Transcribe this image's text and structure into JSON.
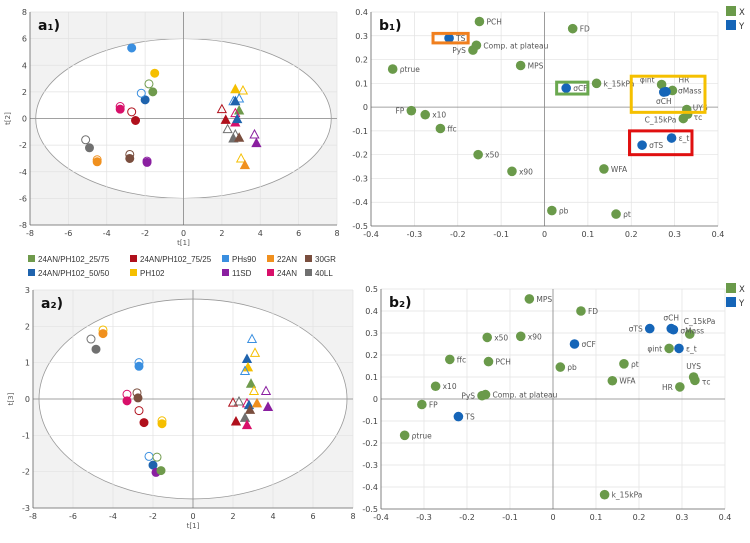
{
  "groups": [
    {
      "name": "24AN/PH102_25/75",
      "color": "#6f9a4c"
    },
    {
      "name": "24AN/PH102_50/50",
      "color": "#1f63ad"
    },
    {
      "name": "24AN/PH102_75/25",
      "color": "#b0101c"
    },
    {
      "name": "PH102",
      "color": "#f5bf00"
    },
    {
      "name": "PHs90",
      "color": "#3a8fe0"
    },
    {
      "name": "11SD",
      "color": "#8a1fa0"
    },
    {
      "name": "22AN",
      "color": "#f0901e"
    },
    {
      "name": "24AN",
      "color": "#d8106a"
    },
    {
      "name": "30GR",
      "color": "#7a4e3e"
    },
    {
      "name": "40LL",
      "color": "#707070"
    }
  ],
  "chart_data": [
    {
      "id": "a1",
      "title": "a₁)",
      "type": "scatter",
      "xlabel": "t[1]",
      "ylabel": "t[2]",
      "xlim": [
        -8,
        8
      ],
      "ylim": [
        -8,
        8
      ],
      "xticks": [
        -8,
        -6,
        -4,
        -2,
        0,
        2,
        4,
        6,
        8
      ],
      "yticks": [
        -8,
        -6,
        -4,
        -2,
        0,
        2,
        4,
        6,
        8
      ],
      "ellipse": [
        7.7,
        6
      ],
      "points": [
        [
          4,
          "c",
          1,
          -2.7,
          5.3
        ],
        [
          3,
          "c",
          1,
          -1.5,
          3.4
        ],
        [
          0,
          "c",
          1,
          -1.6,
          2.0
        ],
        [
          1,
          "c",
          1,
          -2.0,
          1.4
        ],
        [
          4,
          "c",
          0,
          -2.2,
          1.9
        ],
        [
          0,
          "c",
          0,
          -1.8,
          2.6
        ],
        [
          7,
          "c",
          0,
          -3.3,
          0.9
        ],
        [
          7,
          "c",
          1,
          -3.3,
          0.7
        ],
        [
          2,
          "c",
          0,
          -2.7,
          0.5
        ],
        [
          2,
          "c",
          1,
          -2.5,
          -0.15
        ],
        [
          9,
          "c",
          0,
          -5.1,
          -1.6
        ],
        [
          9,
          "c",
          1,
          -4.9,
          -2.2
        ],
        [
          6,
          "c",
          0,
          -4.5,
          -3.1
        ],
        [
          6,
          "c",
          1,
          -4.5,
          -3.25
        ],
        [
          8,
          "c",
          0,
          -2.8,
          -2.7
        ],
        [
          8,
          "c",
          1,
          -2.8,
          -3.0
        ],
        [
          5,
          "c",
          0,
          -1.9,
          -3.2
        ],
        [
          5,
          "c",
          1,
          -1.9,
          -3.3
        ],
        [
          3,
          "t",
          1,
          2.7,
          2.2
        ],
        [
          3,
          "t",
          0,
          3.1,
          2.1
        ],
        [
          4,
          "t",
          0,
          2.9,
          1.5
        ],
        [
          4,
          "t",
          0,
          2.6,
          1.3
        ],
        [
          1,
          "t",
          1,
          2.7,
          1.3
        ],
        [
          0,
          "t",
          1,
          2.9,
          0.6
        ],
        [
          2,
          "t",
          0,
          2.0,
          0.7
        ],
        [
          2,
          "t",
          1,
          2.2,
          -0.1
        ],
        [
          7,
          "t",
          0,
          2.7,
          0.4
        ],
        [
          7,
          "t",
          1,
          2.7,
          -0.3
        ],
        [
          1,
          "t",
          1,
          2.8,
          -0.05
        ],
        [
          9,
          "t",
          0,
          2.3,
          -0.8
        ],
        [
          9,
          "t",
          0,
          2.7,
          -1.2
        ],
        [
          9,
          "t",
          1,
          2.6,
          -1.5
        ],
        [
          8,
          "t",
          1,
          2.9,
          -1.45
        ],
        [
          5,
          "t",
          0,
          3.7,
          -1.2
        ],
        [
          5,
          "t",
          1,
          3.8,
          -1.85
        ],
        [
          3,
          "t",
          0,
          3.0,
          -3.0
        ],
        [
          6,
          "t",
          1,
          3.2,
          -3.5
        ]
      ]
    },
    {
      "id": "a2",
      "title": "a₂)",
      "type": "scatter",
      "xlabel": "t[1]",
      "ylabel": "t[3]",
      "xlim": [
        -8,
        8
      ],
      "ylim": [
        -3,
        3
      ],
      "xticks": [
        -8,
        -6,
        -4,
        -2,
        0,
        2,
        4,
        6,
        8
      ],
      "yticks": [
        -3,
        -2,
        -1,
        0,
        1,
        2,
        3
      ],
      "ellipse": [
        7.7,
        2.75
      ],
      "points": [
        [
          3,
          "c",
          0,
          -4.5,
          1.9
        ],
        [
          6,
          "c",
          1,
          -4.5,
          1.8
        ],
        [
          9,
          "c",
          0,
          -5.1,
          1.65
        ],
        [
          9,
          "c",
          1,
          -4.85,
          1.37
        ],
        [
          4,
          "c",
          0,
          -2.7,
          1.0
        ],
        [
          4,
          "c",
          1,
          -2.7,
          0.9
        ],
        [
          7,
          "c",
          0,
          -3.3,
          0.13
        ],
        [
          7,
          "c",
          1,
          -3.3,
          -0.05
        ],
        [
          8,
          "c",
          0,
          -2.8,
          0.17
        ],
        [
          8,
          "c",
          1,
          -2.75,
          0.03
        ],
        [
          2,
          "c",
          0,
          -2.7,
          -0.32
        ],
        [
          2,
          "c",
          1,
          -2.45,
          -0.65
        ],
        [
          3,
          "c",
          0,
          -1.55,
          -0.6
        ],
        [
          3,
          "c",
          1,
          -1.55,
          -0.68
        ],
        [
          4,
          "c",
          0,
          -2.2,
          -1.58
        ],
        [
          0,
          "c",
          0,
          -1.8,
          -1.6
        ],
        [
          1,
          "c",
          1,
          -2.0,
          -1.82
        ],
        [
          5,
          "c",
          1,
          -1.85,
          -2.02
        ],
        [
          0,
          "c",
          1,
          -1.6,
          -1.97
        ],
        [
          4,
          "t",
          0,
          2.95,
          1.65
        ],
        [
          3,
          "t",
          0,
          3.1,
          1.27
        ],
        [
          1,
          "t",
          1,
          2.7,
          1.1
        ],
        [
          3,
          "t",
          1,
          2.75,
          0.87
        ],
        [
          4,
          "t",
          0,
          2.6,
          0.77
        ],
        [
          0,
          "t",
          1,
          2.9,
          0.42
        ],
        [
          3,
          "t",
          0,
          3.05,
          0.22
        ],
        [
          5,
          "t",
          0,
          3.65,
          0.22
        ],
        [
          2,
          "t",
          0,
          2.0,
          -0.1
        ],
        [
          9,
          "t",
          0,
          2.3,
          -0.07
        ],
        [
          7,
          "t",
          0,
          2.7,
          -0.12
        ],
        [
          1,
          "t",
          1,
          2.8,
          -0.17
        ],
        [
          6,
          "t",
          1,
          3.2,
          -0.12
        ],
        [
          5,
          "t",
          1,
          3.75,
          -0.22
        ],
        [
          8,
          "t",
          1,
          2.85,
          -0.3
        ],
        [
          9,
          "t",
          1,
          2.6,
          -0.52
        ],
        [
          2,
          "t",
          1,
          2.15,
          -0.62
        ],
        [
          7,
          "t",
          1,
          2.7,
          -0.72
        ]
      ]
    },
    {
      "id": "b1",
      "title": "b₁)",
      "type": "scatter",
      "xlim": [
        -0.4,
        0.4
      ],
      "ylim": [
        -0.5,
        0.4
      ],
      "xticks": [
        -0.4,
        -0.3,
        -0.2,
        -0.1,
        0,
        0.1,
        0.2,
        0.3,
        0.4
      ],
      "yticks": [
        -0.5,
        -0.4,
        -0.3,
        -0.2,
        -0.1,
        0,
        0.1,
        0.2,
        0.3,
        0.4
      ],
      "legend": [
        {
          "name": "X",
          "color": "#6a9a4a"
        },
        {
          "name": "Y",
          "color": "#1565b8"
        }
      ],
      "points": [
        [
          "PCH",
          "X",
          -0.15,
          0.36
        ],
        [
          "FD",
          "X",
          0.065,
          0.33
        ],
        [
          "TS",
          "Y",
          -0.22,
          0.29
        ],
        [
          "Comp. at plateau",
          "X",
          -0.157,
          0.26
        ],
        [
          "PyS",
          "X",
          -0.165,
          0.24
        ],
        [
          "ρtrue",
          "X",
          -0.35,
          0.16
        ],
        [
          "MPS",
          "X",
          -0.055,
          0.175
        ],
        [
          "k_15kPa",
          "X",
          0.12,
          0.1
        ],
        [
          "σCF",
          "Y",
          0.05,
          0.08
        ],
        [
          "φint",
          "X",
          0.27,
          0.095
        ],
        [
          "HR",
          "X",
          0.295,
          0.07
        ],
        [
          "σMass",
          "Y",
          0.28,
          0.065
        ],
        [
          "σCH",
          "Y",
          0.275,
          0.063
        ],
        [
          "UYS",
          "X",
          0.328,
          -0.01
        ],
        [
          "τc",
          "X",
          0.33,
          -0.03
        ],
        [
          "C_15kPa",
          "X",
          0.32,
          -0.048
        ],
        [
          "FP",
          "X",
          -0.307,
          -0.015
        ],
        [
          "x10",
          "X",
          -0.275,
          -0.032
        ],
        [
          "ffc",
          "X",
          -0.24,
          -0.09
        ],
        [
          "ε_t",
          "Y",
          0.293,
          -0.13
        ],
        [
          "σTS",
          "Y",
          0.225,
          -0.16
        ],
        [
          "x50",
          "X",
          -0.153,
          -0.2
        ],
        [
          "x90",
          "X",
          -0.075,
          -0.27
        ],
        [
          "WFA",
          "X",
          0.137,
          -0.26
        ],
        [
          "ρb",
          "X",
          0.017,
          -0.435
        ],
        [
          "ρt",
          "X",
          0.165,
          -0.45
        ]
      ],
      "highlights": [
        {
          "color": "#f07f1e",
          "x": [
            -0.257,
            -0.176
          ],
          "y": [
            0.27,
            0.31
          ]
        },
        {
          "color": "#6aa84f",
          "x": [
            0.028,
            0.1
          ],
          "y": [
            0.055,
            0.105
          ]
        },
        {
          "color": "#f5c000",
          "x": [
            0.2,
            0.37
          ],
          "y": [
            -0.022,
            0.13
          ]
        },
        {
          "color": "#e01010",
          "x": [
            0.196,
            0.34
          ],
          "y": [
            -0.2,
            -0.1
          ]
        }
      ]
    },
    {
      "id": "b2",
      "title": "b₂)",
      "type": "scatter",
      "xlim": [
        -0.4,
        0.4
      ],
      "ylim": [
        -0.5,
        0.5
      ],
      "xticks": [
        -0.4,
        -0.3,
        -0.2,
        -0.1,
        0,
        0.1,
        0.2,
        0.3,
        0.4
      ],
      "yticks": [
        -0.5,
        -0.4,
        -0.3,
        -0.2,
        -0.1,
        0,
        0.1,
        0.2,
        0.3,
        0.4,
        0.5
      ],
      "legend": [
        {
          "name": "X",
          "color": "#6a9a4a"
        },
        {
          "name": "Y",
          "color": "#1565b8"
        }
      ],
      "points": [
        [
          "MPS",
          "X",
          -0.055,
          0.455
        ],
        [
          "FD",
          "X",
          0.065,
          0.4
        ],
        [
          "σTS",
          "Y",
          0.225,
          0.32
        ],
        [
          "σCH",
          "Y",
          0.275,
          0.32
        ],
        [
          "σMass",
          "Y",
          0.28,
          0.315
        ],
        [
          "C_15kPa",
          "X",
          0.318,
          0.295
        ],
        [
          "x50",
          "X",
          -0.153,
          0.28
        ],
        [
          "x90",
          "X",
          -0.075,
          0.285
        ],
        [
          "σCF",
          "Y",
          0.05,
          0.25
        ],
        [
          "φint",
          "X",
          0.27,
          0.23
        ],
        [
          "ε_t",
          "Y",
          0.293,
          0.23
        ],
        [
          "ffc",
          "X",
          -0.24,
          0.18
        ],
        [
          "PCH",
          "X",
          -0.15,
          0.17
        ],
        [
          "ρb",
          "X",
          0.017,
          0.145
        ],
        [
          "ρt",
          "X",
          0.165,
          0.16
        ],
        [
          "UYS",
          "X",
          0.327,
          0.1
        ],
        [
          "τc",
          "X",
          0.33,
          0.085
        ],
        [
          "WFA",
          "X",
          0.138,
          0.083
        ],
        [
          "HR",
          "X",
          0.295,
          0.055
        ],
        [
          "x10",
          "X",
          -0.273,
          0.058
        ],
        [
          "PyS",
          "X",
          -0.165,
          0.015
        ],
        [
          "Comp. at plateau",
          "X",
          -0.157,
          0.02
        ],
        [
          "FP",
          "X",
          -0.305,
          -0.025
        ],
        [
          "TS",
          "Y",
          -0.22,
          -0.08
        ],
        [
          "ρtrue",
          "X",
          -0.345,
          -0.165
        ],
        [
          "k_15kPa",
          "X",
          0.12,
          -0.435
        ]
      ]
    }
  ]
}
